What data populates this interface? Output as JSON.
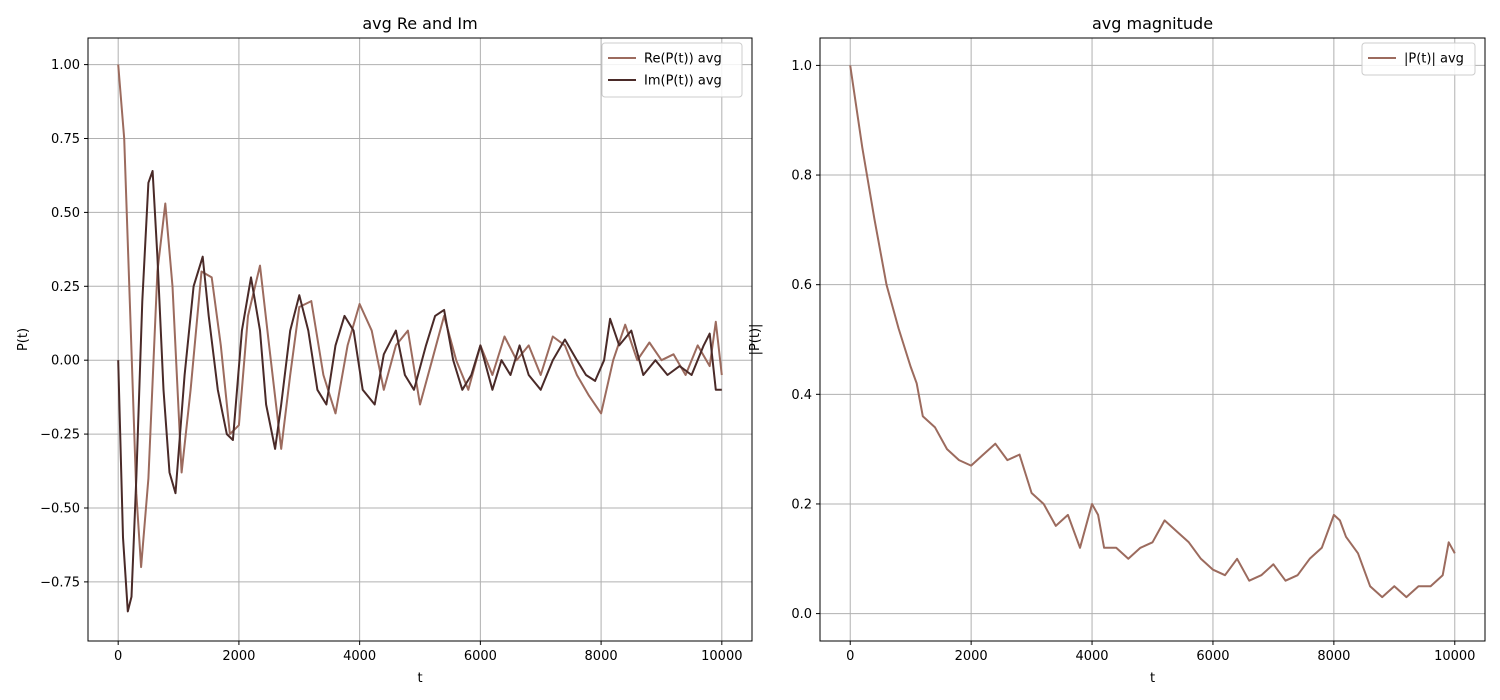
{
  "colors": {
    "re": "#9c6b5e",
    "im": "#4a2a28",
    "mag": "#9c6b5e",
    "grid": "#b0b0b0"
  },
  "chart_data": [
    {
      "type": "line",
      "title": "avg Re and Im",
      "xlabel": "t",
      "ylabel": "P(t)",
      "xlim": [
        -500,
        10500
      ],
      "ylim": [
        -0.95,
        1.09
      ],
      "xticks": [
        0,
        2000,
        4000,
        6000,
        8000,
        10000
      ],
      "xtick_labels": [
        "0",
        "2000",
        "4000",
        "6000",
        "8000",
        "10000"
      ],
      "yticks": [
        -0.75,
        -0.5,
        -0.25,
        0.0,
        0.25,
        0.5,
        0.75,
        1.0
      ],
      "ytick_labels": [
        "−0.75",
        "−0.50",
        "−0.25",
        "0.00",
        "0.25",
        "0.50",
        "0.75",
        "1.00"
      ],
      "grid": true,
      "legend": "top-right",
      "series": [
        {
          "name": "Re(P(t)) avg",
          "color_key": "re",
          "x": [
            0,
            100,
            200,
            300,
            380,
            500,
            650,
            780,
            900,
            1050,
            1200,
            1380,
            1550,
            1700,
            1850,
            2000,
            2150,
            2350,
            2500,
            2700,
            2850,
            3000,
            3200,
            3400,
            3600,
            3800,
            4000,
            4200,
            4400,
            4600,
            4800,
            5000,
            5200,
            5400,
            5600,
            5800,
            6000,
            6200,
            6400,
            6600,
            6800,
            7000,
            7200,
            7400,
            7600,
            7800,
            8000,
            8200,
            8400,
            8600,
            8800,
            9000,
            9200,
            9400,
            9600,
            9800,
            9900,
            10000
          ],
          "y": [
            1.0,
            0.75,
            0.15,
            -0.45,
            -0.7,
            -0.4,
            0.3,
            0.53,
            0.25,
            -0.38,
            -0.1,
            0.3,
            0.28,
            0.05,
            -0.25,
            -0.22,
            0.15,
            0.32,
            0.05,
            -0.3,
            -0.05,
            0.18,
            0.2,
            -0.05,
            -0.18,
            0.05,
            0.19,
            0.1,
            -0.1,
            0.05,
            0.1,
            -0.15,
            0.0,
            0.15,
            0.0,
            -0.1,
            0.05,
            -0.05,
            0.08,
            0.0,
            0.05,
            -0.05,
            0.08,
            0.05,
            -0.05,
            -0.12,
            -0.18,
            0.0,
            0.12,
            0.0,
            0.06,
            0.0,
            0.02,
            -0.05,
            0.05,
            -0.02,
            0.13,
            -0.05
          ]
        },
        {
          "name": "Im(P(t)) avg",
          "color_key": "im",
          "x": [
            0,
            80,
            160,
            220,
            300,
            400,
            500,
            570,
            650,
            750,
            850,
            950,
            1100,
            1250,
            1400,
            1500,
            1650,
            1800,
            1900,
            2050,
            2200,
            2350,
            2450,
            2600,
            2700,
            2850,
            3000,
            3150,
            3300,
            3450,
            3600,
            3750,
            3900,
            4050,
            4250,
            4400,
            4600,
            4750,
            4900,
            5100,
            5250,
            5400,
            5550,
            5700,
            5850,
            6000,
            6200,
            6350,
            6500,
            6650,
            6800,
            7000,
            7200,
            7400,
            7600,
            7750,
            7900,
            8050,
            8150,
            8300,
            8500,
            8700,
            8900,
            9100,
            9300,
            9500,
            9700,
            9800,
            9900,
            10000
          ],
          "y": [
            0.0,
            -0.6,
            -0.85,
            -0.8,
            -0.4,
            0.2,
            0.6,
            0.64,
            0.35,
            -0.1,
            -0.38,
            -0.45,
            -0.05,
            0.25,
            0.35,
            0.15,
            -0.1,
            -0.25,
            -0.27,
            0.1,
            0.28,
            0.1,
            -0.15,
            -0.3,
            -0.15,
            0.1,
            0.22,
            0.1,
            -0.1,
            -0.15,
            0.05,
            0.15,
            0.1,
            -0.1,
            -0.15,
            0.02,
            0.1,
            -0.05,
            -0.1,
            0.05,
            0.15,
            0.17,
            0.0,
            -0.1,
            -0.05,
            0.05,
            -0.1,
            0.0,
            -0.05,
            0.05,
            -0.05,
            -0.1,
            0.0,
            0.07,
            0.0,
            -0.05,
            -0.07,
            0.0,
            0.14,
            0.05,
            0.1,
            -0.05,
            0.0,
            -0.05,
            -0.02,
            -0.05,
            0.05,
            0.09,
            -0.1,
            -0.1
          ]
        }
      ]
    },
    {
      "type": "line",
      "title": "avg magnitude",
      "xlabel": "t",
      "ylabel": "|P(t)|",
      "xlim": [
        -500,
        10500
      ],
      "ylim": [
        -0.05,
        1.05
      ],
      "xticks": [
        0,
        2000,
        4000,
        6000,
        8000,
        10000
      ],
      "xtick_labels": [
        "0",
        "2000",
        "4000",
        "6000",
        "8000",
        "10000"
      ],
      "yticks": [
        0.0,
        0.2,
        0.4,
        0.6,
        0.8,
        1.0
      ],
      "ytick_labels": [
        "0.0",
        "0.2",
        "0.4",
        "0.6",
        "0.8",
        "1.0"
      ],
      "grid": true,
      "legend": "top-right",
      "series": [
        {
          "name": "|P(t)| avg",
          "color_key": "mag",
          "x": [
            0,
            200,
            400,
            600,
            800,
            1000,
            1100,
            1200,
            1400,
            1600,
            1800,
            2000,
            2200,
            2400,
            2600,
            2800,
            3000,
            3200,
            3400,
            3600,
            3800,
            4000,
            4100,
            4200,
            4400,
            4600,
            4800,
            5000,
            5200,
            5400,
            5600,
            5800,
            6000,
            6200,
            6400,
            6600,
            6800,
            7000,
            7200,
            7400,
            7600,
            7800,
            8000,
            8100,
            8200,
            8400,
            8600,
            8800,
            9000,
            9200,
            9400,
            9600,
            9800,
            9900,
            10000
          ],
          "y": [
            1.0,
            0.85,
            0.72,
            0.6,
            0.52,
            0.45,
            0.42,
            0.36,
            0.34,
            0.3,
            0.28,
            0.27,
            0.29,
            0.31,
            0.28,
            0.29,
            0.22,
            0.2,
            0.16,
            0.18,
            0.12,
            0.2,
            0.18,
            0.12,
            0.12,
            0.1,
            0.12,
            0.13,
            0.17,
            0.15,
            0.13,
            0.1,
            0.08,
            0.07,
            0.1,
            0.06,
            0.07,
            0.09,
            0.06,
            0.07,
            0.1,
            0.12,
            0.18,
            0.17,
            0.14,
            0.11,
            0.05,
            0.03,
            0.05,
            0.03,
            0.05,
            0.05,
            0.07,
            0.13,
            0.11
          ]
        }
      ]
    }
  ]
}
